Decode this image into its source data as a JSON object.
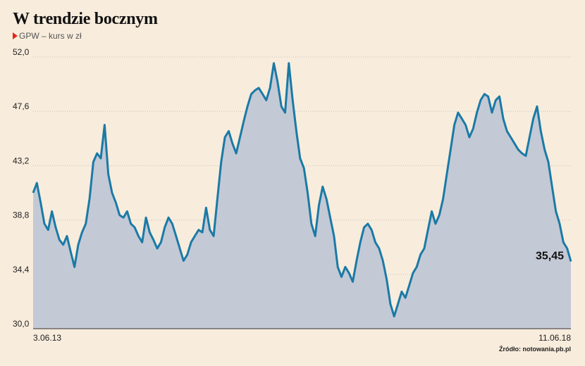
{
  "title": "W trendzie bocznym",
  "subtitle": "GPW – kurs w zł",
  "source": "Źródło: notowania.pb.pl",
  "colors": {
    "line": "#1a7aa6",
    "fill": "#c4c9d6",
    "grid": "#c9c2b8",
    "accent": "#e0271e"
  },
  "chart_data": {
    "type": "area",
    "title": "W trendzie bocznym",
    "ylabel": "GPW – kurs w zł",
    "ylim": [
      30.0,
      52.0
    ],
    "yticks": [
      "30,0",
      "34,4",
      "38,8",
      "43,2",
      "47,6",
      "52,0"
    ],
    "ytick_values": [
      30.0,
      34.4,
      38.8,
      43.2,
      47.6,
      52.0
    ],
    "x_start_label": "3.06.13",
    "x_end_label": "11.06.18",
    "last_value_label": "35,45",
    "grid": true,
    "series": [
      {
        "values": [
          41.0,
          41.8,
          40.2,
          38.5,
          38.0,
          39.5,
          38.2,
          37.2,
          36.8,
          37.5,
          36.2,
          35.0,
          36.8,
          37.8,
          38.5,
          40.5,
          43.5,
          44.2,
          43.8,
          46.5,
          42.5,
          41.0,
          40.2,
          39.2,
          39.0,
          39.5,
          38.5,
          38.2,
          37.5,
          37.0,
          39.0,
          37.8,
          37.2,
          36.5,
          37.0,
          38.2,
          39.0,
          38.5,
          37.5,
          36.5,
          35.5,
          36.0,
          37.0,
          37.5,
          38.0,
          37.8,
          39.8,
          38.0,
          37.5,
          40.5,
          43.5,
          45.5,
          46.0,
          45.0,
          44.2,
          45.5,
          46.8,
          48.0,
          49.0,
          49.3,
          49.5,
          49.0,
          48.5,
          49.5,
          51.5,
          50.0,
          48.0,
          47.5,
          51.5,
          48.5,
          46.0,
          43.8,
          43.0,
          41.0,
          38.5,
          37.5,
          40.0,
          41.5,
          40.5,
          39.0,
          37.5,
          35.0,
          34.2,
          35.0,
          34.5,
          33.8,
          35.5,
          37.0,
          38.2,
          38.5,
          38.0,
          37.0,
          36.5,
          35.5,
          34.0,
          32.0,
          31.0,
          32.0,
          33.0,
          32.5,
          33.5,
          34.5,
          35.0,
          36.0,
          36.5,
          38.0,
          39.5,
          38.5,
          39.2,
          40.5,
          42.5,
          44.5,
          46.5,
          47.5,
          47.0,
          46.5,
          45.5,
          46.2,
          47.5,
          48.5,
          49.0,
          48.8,
          47.5,
          48.5,
          48.8,
          47.0,
          46.0,
          45.5,
          45.0,
          44.5,
          44.2,
          44.0,
          45.5,
          47.0,
          48.0,
          46.0,
          44.5,
          43.5,
          41.5,
          39.5,
          38.5,
          37.0,
          36.5,
          35.45
        ]
      }
    ]
  }
}
